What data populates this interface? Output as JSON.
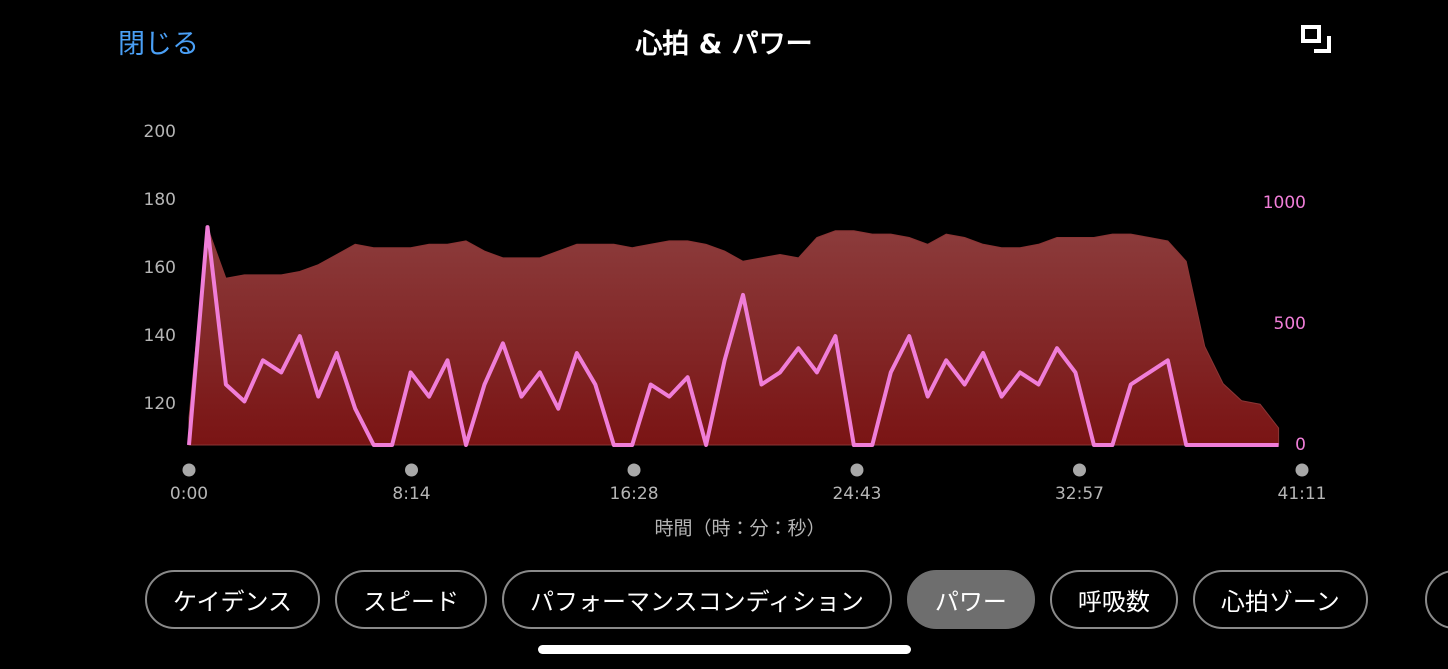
{
  "header": {
    "close": "閉じる",
    "title": "心拍 & パワー"
  },
  "chart_data": {
    "type": "area-line",
    "xlabel": "時間（時：分：秒）",
    "x": [
      0,
      41,
      82,
      123,
      164,
      205,
      246,
      287,
      328,
      369,
      410,
      451,
      492,
      533,
      574,
      615,
      656,
      697,
      738,
      779,
      820,
      861,
      902,
      943,
      984,
      1025,
      1066,
      1107,
      1148,
      1189,
      1230,
      1271,
      1312,
      1353,
      1394,
      1435,
      1476,
      1517,
      1558,
      1599,
      1640,
      1681,
      1722,
      1763,
      1804,
      1845,
      1886,
      1927,
      1968,
      2009,
      2050,
      2091,
      2132,
      2173,
      2214,
      2255,
      2296,
      2337,
      2378,
      2419
    ],
    "xlim": [
      0,
      2471
    ],
    "xticks": [
      {
        "value": 0,
        "label": "0:00"
      },
      {
        "value": 494,
        "label": "8:14"
      },
      {
        "value": 988,
        "label": "16:28"
      },
      {
        "value": 1483,
        "label": "24:43"
      },
      {
        "value": 1977,
        "label": "32:57"
      },
      {
        "value": 2471,
        "label": "41:11"
      }
    ],
    "ylim": [
      108,
      200
    ],
    "yticks": [
      120,
      140,
      160,
      180,
      200
    ],
    "y2lim": [
      0,
      1293
    ],
    "y2ticks": [
      0,
      500,
      1000
    ],
    "series": [
      {
        "color": "#8a3535",
        "values": [
          116,
          172,
          157,
          158,
          158,
          158,
          159,
          161,
          164,
          167,
          166,
          166,
          166,
          167,
          167,
          168,
          165,
          163,
          163,
          163,
          165,
          167,
          167,
          167,
          166,
          167,
          168,
          168,
          167,
          165,
          162,
          163,
          164,
          163,
          169,
          171,
          171,
          170,
          170,
          169,
          167,
          170,
          169,
          167,
          166,
          166,
          167,
          169,
          169,
          169,
          170,
          170,
          169,
          168,
          162,
          137,
          126,
          121,
          120,
          113
        ]
      },
      {
        "color": "#f07ed8",
        "axis": "y2",
        "values": [
          0,
          900,
          250,
          180,
          350,
          300,
          450,
          200,
          380,
          150,
          0,
          0,
          300,
          200,
          350,
          0,
          250,
          420,
          200,
          300,
          150,
          380,
          250,
          0,
          0,
          250,
          200,
          280,
          0,
          350,
          620,
          250,
          300,
          400,
          300,
          450,
          0,
          0,
          300,
          450,
          200,
          350,
          250,
          380,
          200,
          300,
          250,
          400,
          300,
          0,
          0,
          250,
          300,
          350,
          0,
          0,
          0,
          0,
          0,
          0
        ]
      }
    ]
  },
  "tabs": [
    "ケイデンス",
    "スピード",
    "パフォーマンスコンディション",
    "パワー",
    "呼吸数",
    "心拍ゾーン"
  ]
}
